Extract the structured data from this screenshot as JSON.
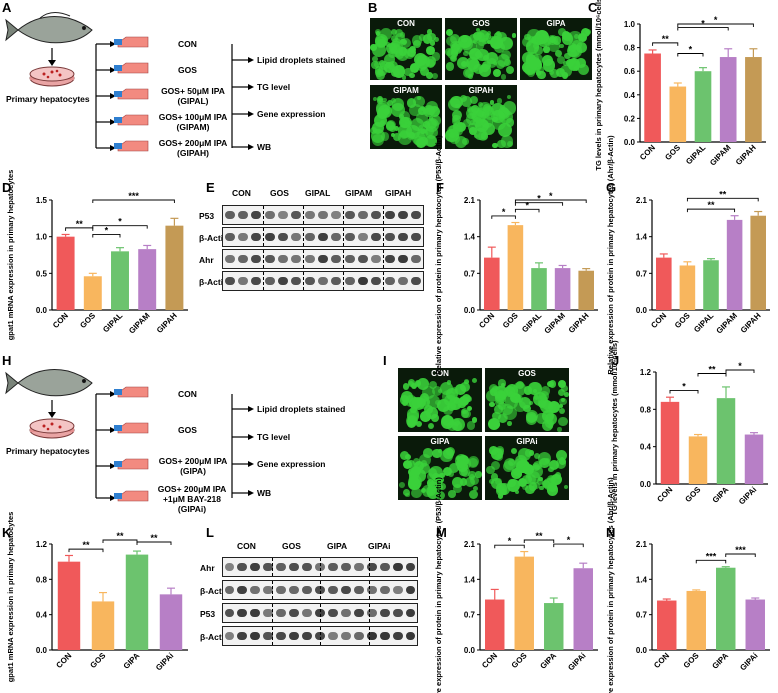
{
  "panel_letters": [
    "A",
    "B",
    "C",
    "D",
    "E",
    "F",
    "G",
    "H",
    "I",
    "J",
    "K",
    "L",
    "M",
    "N"
  ],
  "design_A": {
    "source": "Primary hepatocytes",
    "groups": [
      "CON",
      "GOS",
      "GOS+ 50μM IPA (GIPAL)",
      "GOS+ 100μM IPA (GIPAM)",
      "GOS+ 200μM IPA (GIPAH)"
    ],
    "outcomes": [
      "Lipid droplets stained",
      "TG level",
      "Gene expression",
      "WB"
    ]
  },
  "design_H": {
    "source": "Primary hepatocytes",
    "groups": [
      "CON",
      "GOS",
      "GOS+ 200μM IPA (GIPA)",
      "GOS+ 200μM IPA +1μM BAY-218 (GIPAi)"
    ],
    "outcomes": [
      "Lipid droplets stained",
      "TG level",
      "Gene expression",
      "WB"
    ]
  },
  "micro_B": [
    "CON",
    "GOS",
    "GIPA",
    "GIPAM",
    "GIPAH"
  ],
  "micro_I": [
    "CON",
    "GOS",
    "GIPA",
    "GIPAi"
  ],
  "blot_E": {
    "groups": [
      "CON",
      "GOS",
      "GIPAL",
      "GIPAM",
      "GIPAH"
    ],
    "rows": [
      "P53",
      "β-Actin",
      "Ahr",
      "β-Actin"
    ]
  },
  "blot_L": {
    "groups": [
      "CON",
      "GOS",
      "GIPA",
      "GIPAi"
    ],
    "rows": [
      "Ahr",
      "β-Actin",
      "P53",
      "β-Actin"
    ]
  },
  "colors": {
    "CON": "#f0595a",
    "GOS": "#f8b65e",
    "G3": "#6cc36e",
    "G4": "#b77fc6",
    "G5": "#c49a55"
  },
  "chart_data": [
    {
      "id": "C",
      "type": "bar",
      "categories": [
        "CON",
        "GOS",
        "GIPAL",
        "GIPAM",
        "GIPAH"
      ],
      "values": [
        0.75,
        0.47,
        0.6,
        0.72,
        0.72
      ],
      "errors": [
        0.03,
        0.03,
        0.03,
        0.07,
        0.07
      ],
      "ylabel": "TG levels in primary hepatocytes (mmol/10⁶cells)",
      "ylim": [
        0,
        1.0
      ],
      "yticks": [
        "0.0",
        "0.2",
        "0.4",
        "0.6",
        "0.8",
        "1.0"
      ],
      "sig": [
        {
          "a": 0,
          "b": 1,
          "s": "**"
        },
        {
          "a": 1,
          "b": 2,
          "s": "*"
        },
        {
          "a": 1,
          "b": 3,
          "s": "*"
        },
        {
          "a": 1,
          "b": 4,
          "s": "*"
        }
      ]
    },
    {
      "id": "D",
      "type": "bar",
      "categories": [
        "CON",
        "GOS",
        "GIPAL",
        "GIPAM",
        "GIPAH"
      ],
      "values": [
        1.0,
        0.46,
        0.8,
        0.83,
        1.15
      ],
      "errors": [
        0.03,
        0.04,
        0.05,
        0.05,
        0.1
      ],
      "ylabel": "gpat1 mRNA expression in primary hepatocytes",
      "ylim": [
        0,
        1.5
      ],
      "yticks": [
        "0.0",
        "0.5",
        "1.0",
        "1.5"
      ],
      "sig": [
        {
          "a": 0,
          "b": 1,
          "s": "**"
        },
        {
          "a": 1,
          "b": 2,
          "s": "*"
        },
        {
          "a": 1,
          "b": 3,
          "s": "*"
        },
        {
          "a": 1,
          "b": 4,
          "s": "***"
        }
      ]
    },
    {
      "id": "F",
      "type": "bar",
      "categories": [
        "CON",
        "GOS",
        "GIPAL",
        "GIPAM",
        "GIPAH"
      ],
      "values": [
        1.0,
        1.62,
        0.8,
        0.8,
        0.75
      ],
      "errors": [
        0.2,
        0.05,
        0.1,
        0.05,
        0.04
      ],
      "ylabel": "Relative expression of protein in primary hepatocytes (P53/β-Actin)",
      "ylim": [
        0,
        2.1
      ],
      "yticks": [
        "0.0",
        "0.7",
        "1.4",
        "2.1"
      ],
      "sig": [
        {
          "a": 0,
          "b": 1,
          "s": "*"
        },
        {
          "a": 1,
          "b": 2,
          "s": "*"
        },
        {
          "a": 1,
          "b": 3,
          "s": "*"
        },
        {
          "a": 1,
          "b": 4,
          "s": "*"
        }
      ]
    },
    {
      "id": "G",
      "type": "bar",
      "categories": [
        "CON",
        "GOS",
        "GIPAL",
        "GIPAM",
        "GIPAH"
      ],
      "values": [
        1.0,
        0.85,
        0.95,
        1.72,
        1.8
      ],
      "errors": [
        0.07,
        0.07,
        0.03,
        0.08,
        0.08
      ],
      "ylabel": "Relative expression of protein in primary hepatocytes (Ahr/β-Actin)",
      "ylim": [
        0,
        2.1
      ],
      "yticks": [
        "0.0",
        "0.7",
        "1.4",
        "2.1"
      ],
      "sig": [
        {
          "a": 1,
          "b": 3,
          "s": "**"
        },
        {
          "a": 1,
          "b": 4,
          "s": "**"
        }
      ]
    },
    {
      "id": "J",
      "type": "bar",
      "categories": [
        "CON",
        "GOS",
        "GIPA",
        "GIPAi"
      ],
      "values": [
        0.88,
        0.51,
        0.92,
        0.53
      ],
      "errors": [
        0.05,
        0.02,
        0.12,
        0.02
      ],
      "ylabel": "TG levels in primary hepatocytes (mmol/10⁶cells)",
      "ylim": [
        0,
        1.2
      ],
      "yticks": [
        "0.0",
        "0.4",
        "0.8",
        "1.2"
      ],
      "sig": [
        {
          "a": 0,
          "b": 1,
          "s": "*"
        },
        {
          "a": 1,
          "b": 2,
          "s": "**"
        },
        {
          "a": 2,
          "b": 3,
          "s": "*"
        }
      ]
    },
    {
      "id": "K",
      "type": "bar",
      "categories": [
        "CON",
        "GOS",
        "GIPA",
        "GIPAi"
      ],
      "values": [
        1.0,
        0.55,
        1.08,
        0.63
      ],
      "errors": [
        0.07,
        0.1,
        0.04,
        0.07
      ],
      "ylabel": "gpat1 mRNA expression in primary hepatocytes",
      "ylim": [
        0,
        1.2
      ],
      "yticks": [
        "0.0",
        "0.4",
        "0.8",
        "1.2"
      ],
      "sig": [
        {
          "a": 0,
          "b": 1,
          "s": "**"
        },
        {
          "a": 1,
          "b": 2,
          "s": "**"
        },
        {
          "a": 2,
          "b": 3,
          "s": "**"
        }
      ]
    },
    {
      "id": "M",
      "type": "bar",
      "categories": [
        "CON",
        "GOS",
        "GIPA",
        "GIPAi"
      ],
      "values": [
        1.0,
        1.85,
        0.93,
        1.62
      ],
      "errors": [
        0.2,
        0.1,
        0.1,
        0.1
      ],
      "ylabel": "Relative expression of protein in primary hepatocytes (P53/β-Actin)",
      "ylim": [
        0,
        2.1
      ],
      "yticks": [
        "0.0",
        "0.7",
        "1.4",
        "2.1"
      ],
      "sig": [
        {
          "a": 0,
          "b": 1,
          "s": "*"
        },
        {
          "a": 1,
          "b": 2,
          "s": "**"
        },
        {
          "a": 2,
          "b": 3,
          "s": "*"
        }
      ]
    },
    {
      "id": "N",
      "type": "bar",
      "categories": [
        "CON",
        "GOS",
        "GIPA",
        "GIPAi"
      ],
      "values": [
        0.98,
        1.17,
        1.63,
        1.0
      ],
      "errors": [
        0.03,
        0.02,
        0.02,
        0.03
      ],
      "ylabel": "Relative expression of protein in primary hepatocytes (Ahr/β-Actin)",
      "ylim": [
        0,
        2.1
      ],
      "yticks": [
        "0.0",
        "0.7",
        "1.4",
        "2.1"
      ],
      "sig": [
        {
          "a": 1,
          "b": 2,
          "s": "***"
        },
        {
          "a": 2,
          "b": 3,
          "s": "***"
        }
      ]
    }
  ]
}
